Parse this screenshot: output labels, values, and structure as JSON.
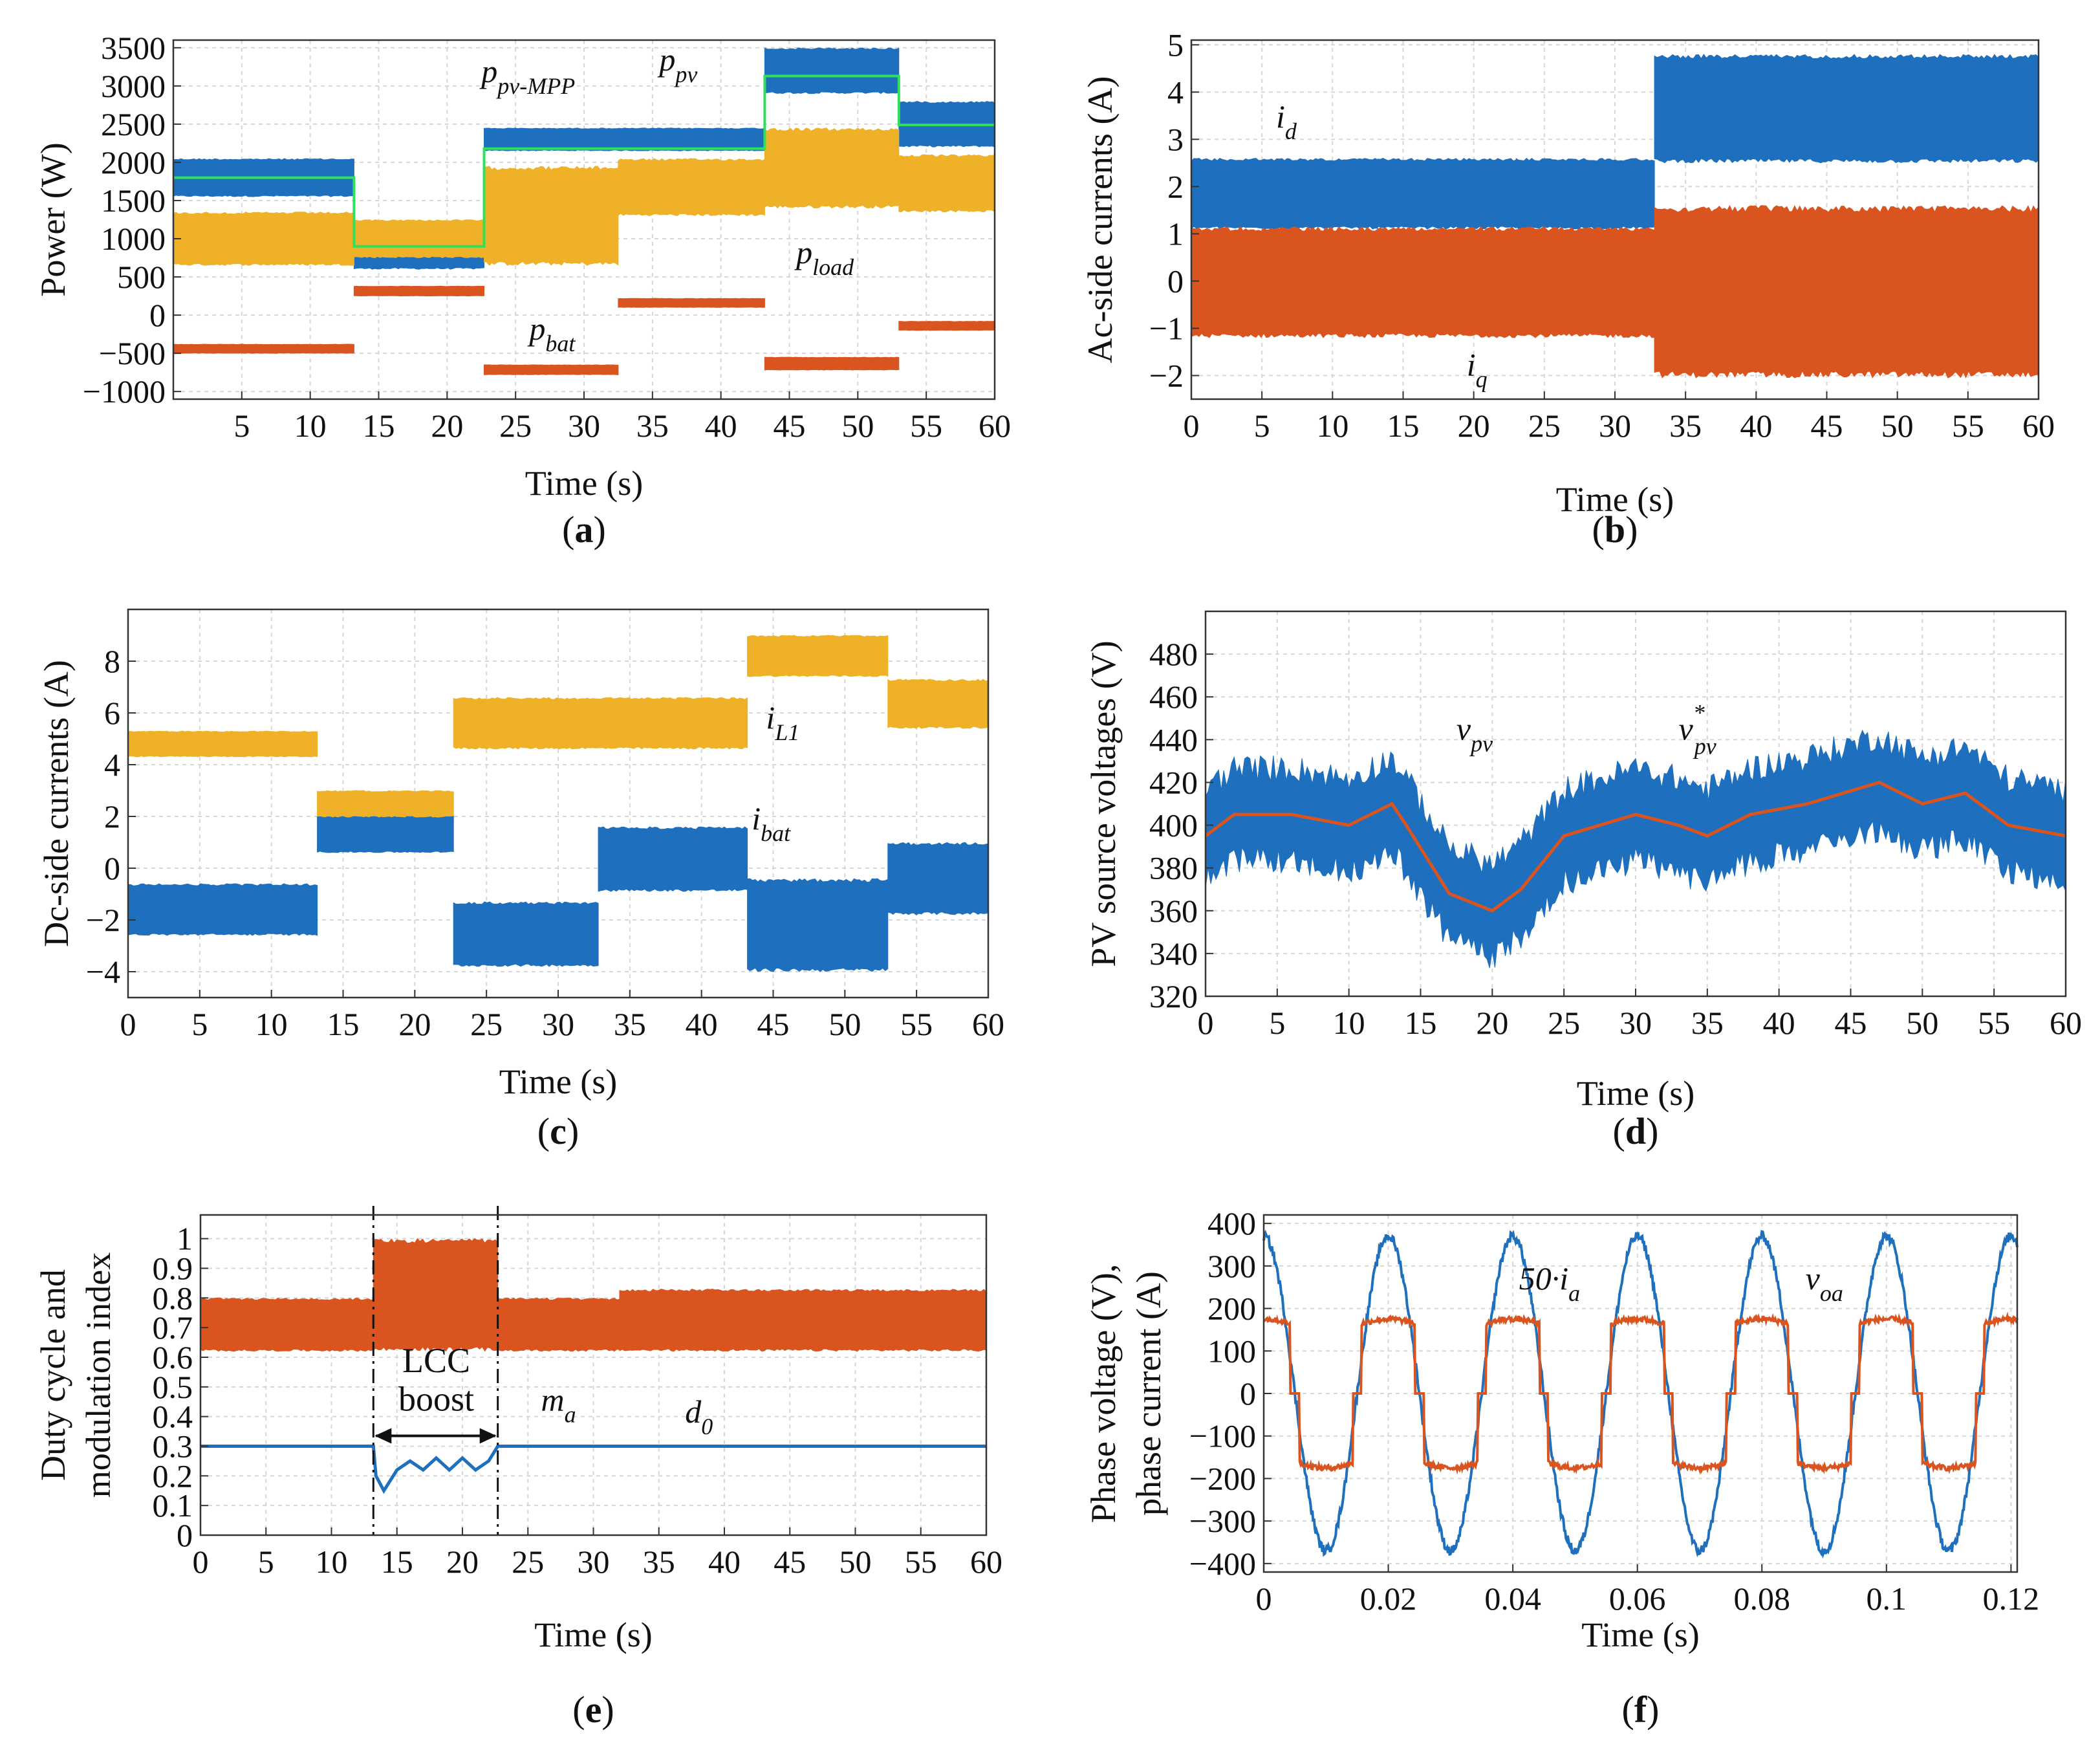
{
  "figure": {
    "captions": [
      "(a)",
      "(b)",
      "(c)",
      "(d)",
      "(e)",
      "(f)"
    ]
  },
  "colors": {
    "blue": "#1f6fbf",
    "orange": "#d9541e",
    "yellow": "#efb128",
    "green": "#2fe05a",
    "grid": "#d6d6d6",
    "axis": "#333333"
  },
  "chart_data": [
    {
      "id": "a",
      "type": "line",
      "caption": "(a)",
      "title": "",
      "xlabel": "Time (s)",
      "ylabel": "Power (W)",
      "xlim": [
        0,
        60
      ],
      "ylim": [
        -1100,
        3600
      ],
      "xticks": [
        5,
        10,
        15,
        20,
        25,
        30,
        35,
        40,
        45,
        50,
        55,
        60
      ],
      "yticks": [
        -1000,
        -500,
        0,
        500,
        1000,
        1500,
        2000,
        2500,
        3000,
        3500
      ],
      "grid": true,
      "series": [
        {
          "name": "p_pv",
          "style": "band",
          "color": "blue",
          "segments": [
            [
              0,
              13.2,
              1550,
              2050
            ],
            [
              13.2,
              22.7,
              600,
              1150
            ],
            [
              22.7,
              43.2,
              2150,
              2450
            ],
            [
              43.2,
              53,
              2900,
              3500
            ],
            [
              53,
              60,
              2200,
              2800
            ]
          ]
        },
        {
          "name": "p_load",
          "style": "band",
          "color": "yellow",
          "segments": [
            [
              0,
              13.2,
              650,
              1350
            ],
            [
              13.2,
              22.7,
              750,
              1250
            ],
            [
              22.7,
              32.5,
              650,
              1950
            ],
            [
              32.5,
              43.2,
              1300,
              2050
            ],
            [
              43.2,
              53,
              1400,
              2450
            ],
            [
              53,
              60,
              1350,
              2100
            ]
          ]
        },
        {
          "name": "p_bat",
          "style": "band",
          "color": "orange",
          "segments": [
            [
              0,
              13.2,
              -500,
              -380
            ],
            [
              13.2,
              22.7,
              250,
              380
            ],
            [
              22.7,
              32.5,
              -780,
              -650
            ],
            [
              32.5,
              43.2,
              100,
              220
            ],
            [
              43.2,
              53,
              -720,
              -550
            ],
            [
              53,
              60,
              -200,
              -80
            ]
          ]
        },
        {
          "name": "p_pv-MPP",
          "style": "step",
          "color": "green",
          "x": [
            0,
            13.2,
            13.2,
            22.7,
            22.7,
            43.2,
            43.2,
            53,
            53,
            60
          ],
          "y": [
            1800,
            1800,
            900,
            900,
            2180,
            2180,
            3130,
            3130,
            2490,
            2490
          ]
        }
      ],
      "annotations": [
        {
          "text": "p",
          "sub": "pv-MPP",
          "x": 22.5,
          "y": 3050
        },
        {
          "text": "p",
          "sub": "pv",
          "x": 35.5,
          "y": 3200
        },
        {
          "text": "p",
          "sub": "load",
          "x": 45.5,
          "y": 680
        },
        {
          "text": "p",
          "sub": "bat",
          "x": 26,
          "y": -320
        }
      ]
    },
    {
      "id": "b",
      "type": "line",
      "caption": "(b)",
      "title": "",
      "xlabel": "Time (s)",
      "ylabel": "Ac-side currents (A)",
      "xlim": [
        0,
        60
      ],
      "ylim": [
        -2.5,
        5.1
      ],
      "xticks": [
        0,
        5,
        10,
        15,
        20,
        25,
        30,
        35,
        40,
        45,
        50,
        55,
        60
      ],
      "yticks": [
        -2,
        -1,
        0,
        1,
        2,
        3,
        4,
        5
      ],
      "grid": true,
      "series": [
        {
          "name": "i_d",
          "style": "band",
          "color": "blue",
          "segments": [
            [
              0,
              13.2,
              1.1,
              2.6
            ],
            [
              13.2,
              23,
              1.1,
              2.6
            ],
            [
              23,
              32.8,
              1.1,
              2.6
            ],
            [
              32.8,
              60,
              2.5,
              4.8
            ]
          ]
        },
        {
          "name": "i_q",
          "style": "band",
          "color": "orange",
          "segments": [
            [
              0,
              32.8,
              -1.2,
              1.15
            ],
            [
              32.8,
              60,
              -2.05,
              1.6
            ]
          ]
        }
      ],
      "annotations": [
        {
          "text": "i",
          "sub": "d",
          "x": 6,
          "y": 3.25
        },
        {
          "text": "i",
          "sub": "q",
          "x": 19.5,
          "y": -2.0
        }
      ]
    },
    {
      "id": "c",
      "type": "line",
      "caption": "(c)",
      "title": "",
      "xlabel": "Time (s)",
      "ylabel": "Dc-side currents (A)",
      "xlim": [
        0,
        60
      ],
      "ylim": [
        -5,
        10
      ],
      "xticks": [
        0,
        5,
        10,
        15,
        20,
        25,
        30,
        35,
        40,
        45,
        50,
        55,
        60
      ],
      "yticks": [
        -4,
        -2,
        0,
        2,
        4,
        6,
        8
      ],
      "grid": true,
      "series": [
        {
          "name": "i_L1",
          "style": "band",
          "color": "yellow",
          "segments": [
            [
              0,
              13.2,
              4.3,
              5.3
            ],
            [
              13.2,
              22.7,
              1.8,
              3.0
            ],
            [
              22.7,
              43.2,
              4.6,
              6.6
            ],
            [
              43.2,
              53,
              7.4,
              9.0
            ],
            [
              53,
              60,
              5.4,
              7.3
            ]
          ]
        },
        {
          "name": "i_bat",
          "style": "band",
          "color": "blue",
          "segments": [
            [
              0,
              13.2,
              -2.6,
              -0.6
            ],
            [
              13.2,
              22.7,
              0.6,
              2.0
            ],
            [
              22.7,
              32.8,
              -3.8,
              -1.3
            ],
            [
              32.8,
              43.2,
              -0.9,
              1.6
            ],
            [
              43.2,
              53,
              -4.0,
              -0.4
            ],
            [
              53,
              60,
              -1.8,
              1.0
            ]
          ]
        }
      ],
      "annotations": [
        {
          "text": "i",
          "sub": "L1",
          "x": 44.5,
          "y": 5.4
        },
        {
          "text": "i",
          "sub": "bat",
          "x": 43.5,
          "y": 1.5
        }
      ]
    },
    {
      "id": "d",
      "type": "line",
      "caption": "(d)",
      "title": "",
      "xlabel": "Time (s)",
      "ylabel": "PV source voltages (V)",
      "xlim": [
        0,
        60
      ],
      "ylim": [
        320,
        500
      ],
      "xticks": [
        0,
        5,
        10,
        15,
        20,
        25,
        30,
        35,
        40,
        45,
        50,
        55,
        60
      ],
      "yticks": [
        320,
        340,
        360,
        380,
        400,
        420,
        440,
        460,
        480
      ],
      "grid": true,
      "series": [
        {
          "name": "v_pv*",
          "style": "line",
          "color": "orange",
          "x": [
            0,
            2,
            6,
            10,
            13,
            14,
            17,
            20,
            22,
            25,
            30,
            33,
            35,
            38,
            42,
            47,
            50,
            53,
            56,
            60
          ],
          "y": [
            395,
            405,
            405,
            400,
            410,
            400,
            368,
            360,
            370,
            395,
            405,
            400,
            395,
            405,
            410,
            420,
            410,
            415,
            400,
            395
          ]
        },
        {
          "name": "v_pv",
          "style": "envelope",
          "color": "blue",
          "spread": 28
        }
      ],
      "annotations": [
        {
          "text": "v",
          "sub": "pv",
          "x": 17.5,
          "y": 440
        },
        {
          "text": "v",
          "sub": "pv",
          "sup": "*",
          "x": 33,
          "y": 440
        }
      ]
    },
    {
      "id": "e",
      "type": "line",
      "caption": "(e)",
      "title": "",
      "xlabel": "Time (s)",
      "ylabel": "Duty cycle and",
      "ylabel2": "modulation index",
      "xlim": [
        0,
        60
      ],
      "ylim": [
        0,
        1.08
      ],
      "xticks": [
        0,
        5,
        10,
        15,
        20,
        25,
        30,
        35,
        40,
        45,
        50,
        55,
        60
      ],
      "yticks": [
        0,
        0.1,
        0.2,
        0.3,
        0.4,
        0.5,
        0.6,
        0.7,
        0.8,
        0.9,
        1
      ],
      "grid": true,
      "series": [
        {
          "name": "m_a",
          "style": "band",
          "color": "orange",
          "segments": [
            [
              0,
              13.2,
              0.62,
              0.8
            ],
            [
              13.2,
              22.7,
              0.62,
              1.0
            ],
            [
              22.7,
              32,
              0.62,
              0.8
            ],
            [
              32,
              60,
              0.62,
              0.83
            ]
          ]
        },
        {
          "name": "d_0",
          "style": "line",
          "color": "blue",
          "x": [
            0,
            13.2,
            13.4,
            14,
            15,
            16,
            17,
            18,
            19,
            20,
            21,
            22,
            22.7,
            22.8,
            60
          ],
          "y": [
            0.3,
            0.3,
            0.2,
            0.15,
            0.22,
            0.25,
            0.22,
            0.26,
            0.22,
            0.26,
            0.22,
            0.25,
            0.3,
            0.3,
            0.3
          ]
        }
      ],
      "annotations": [
        {
          "text": "m",
          "sub": "a",
          "x": 26,
          "y": 0.42
        },
        {
          "text": "d",
          "sub": "0",
          "x": 37,
          "y": 0.38
        },
        {
          "text": "LCC",
          "x": 18,
          "y": 0.55
        },
        {
          "text": "boost",
          "x": 18,
          "y": 0.42
        }
      ],
      "markers": [
        13.2,
        22.7
      ]
    },
    {
      "id": "f",
      "type": "line",
      "caption": "(f)",
      "title": "",
      "xlabel": "Time (s)",
      "ylabel": "Phase voltage (V),",
      "ylabel2": "phase current (A)",
      "xlim": [
        0,
        0.121
      ],
      "ylim": [
        -420,
        420
      ],
      "xticks": [
        0,
        0.02,
        0.04,
        0.06,
        0.08,
        0.1,
        0.12
      ],
      "xticklabels": [
        "0",
        "0.02",
        "0.04",
        "0.06",
        "0.08",
        "0.1",
        "0.12"
      ],
      "yticks": [
        -400,
        -300,
        -200,
        -100,
        0,
        100,
        200,
        300,
        400
      ],
      "grid": true,
      "series": [
        {
          "name": "v_oa",
          "style": "sine",
          "color": "blue",
          "amplitude": 370,
          "frequency_hz": 50,
          "phase_deg": 90
        },
        {
          "name": "50·i_a",
          "style": "quasi-square",
          "color": "orange",
          "amplitude": 175,
          "frequency_hz": 50,
          "phase_deg": 90
        }
      ],
      "annotations": [
        {
          "text": "50·i",
          "sub": "a",
          "x": 0.041,
          "y": 245
        },
        {
          "text": "v",
          "sub": "oa",
          "x": 0.087,
          "y": 245
        }
      ]
    }
  ]
}
